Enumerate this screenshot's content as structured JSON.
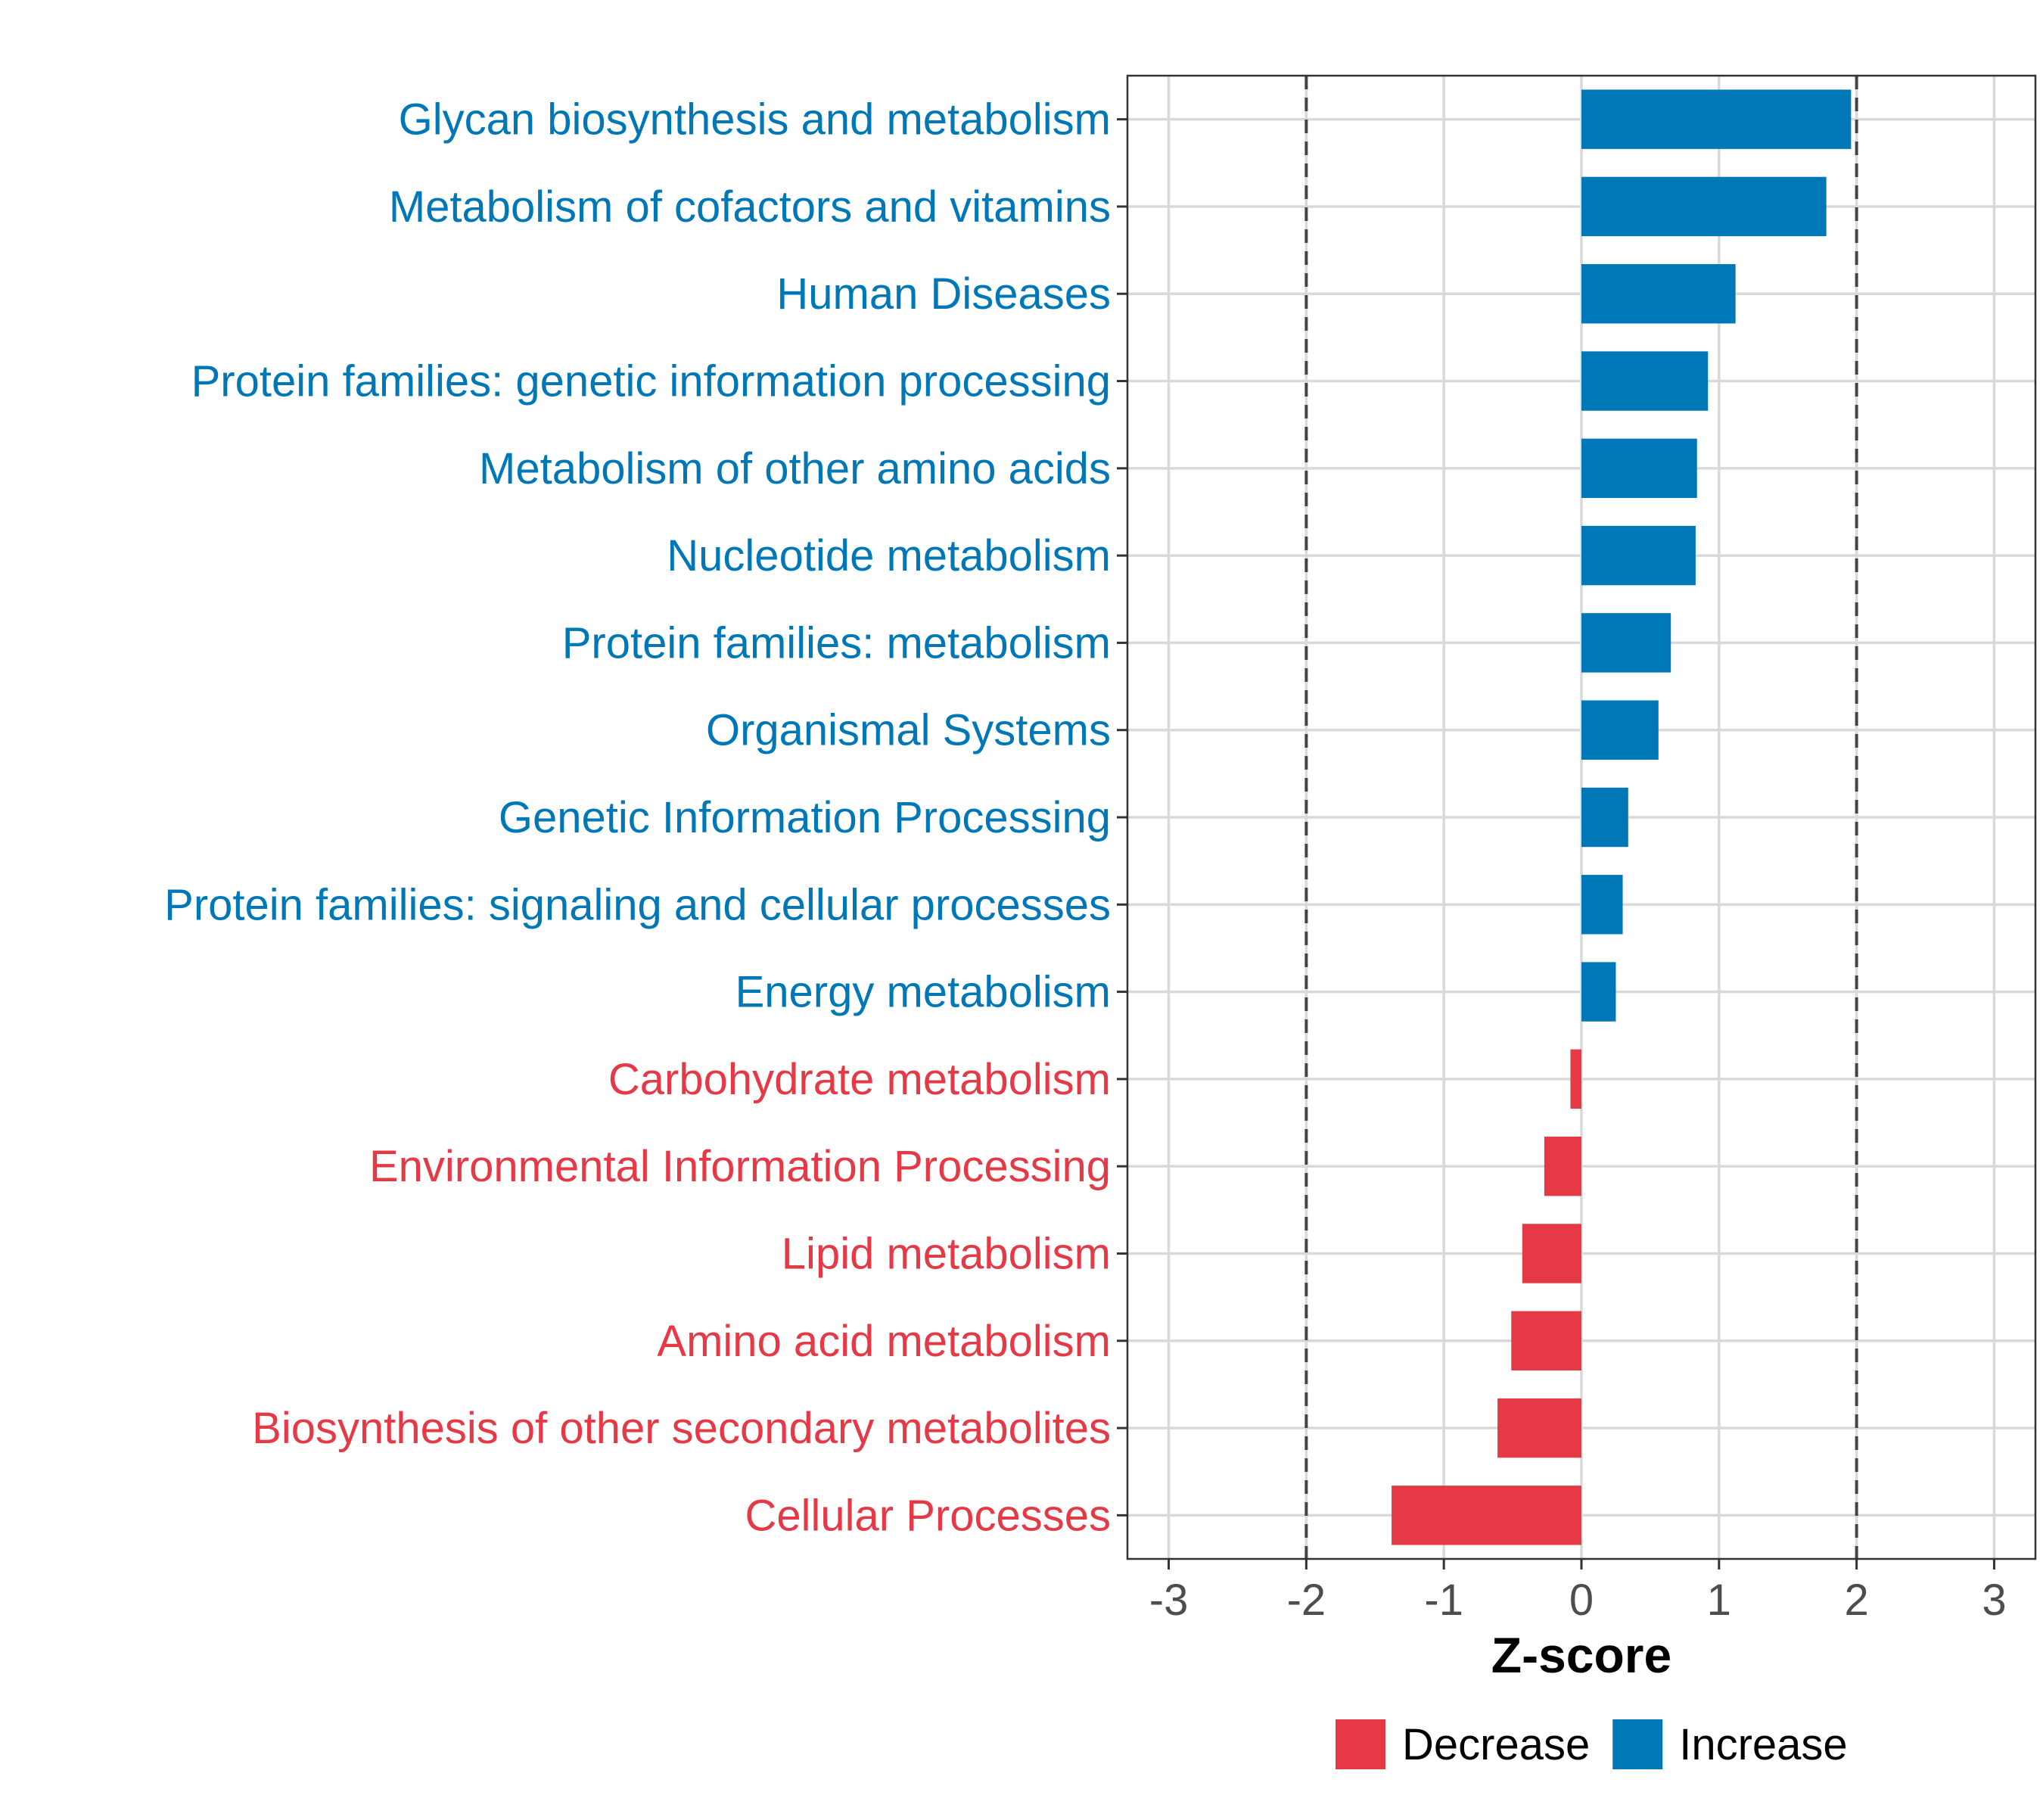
{
  "chart_data": {
    "type": "bar",
    "orientation": "horizontal",
    "categories": [
      "Glycan biosynthesis and metabolism",
      "Metabolism of cofactors and vitamins",
      "Human Diseases",
      "Protein families: genetic information processing",
      "Metabolism of other amino acids",
      "Nucleotide metabolism",
      "Protein families: metabolism",
      "Organismal Systems",
      "Genetic Information Processing",
      "Protein families: signaling and cellular processes",
      "Energy metabolism",
      "Carbohydrate metabolism",
      "Environmental Information Processing",
      "Lipid metabolism",
      "Amino acid metabolism",
      "Biosynthesis of other secondary metabolites",
      "Cellular Processes"
    ],
    "values": [
      1.96,
      1.78,
      1.12,
      0.92,
      0.84,
      0.83,
      0.65,
      0.56,
      0.34,
      0.3,
      0.25,
      -0.08,
      -0.27,
      -0.43,
      -0.51,
      -0.61,
      -1.38
    ],
    "groups": [
      "Increase",
      "Increase",
      "Increase",
      "Increase",
      "Increase",
      "Increase",
      "Increase",
      "Increase",
      "Increase",
      "Increase",
      "Increase",
      "Decrease",
      "Decrease",
      "Decrease",
      "Decrease",
      "Decrease",
      "Decrease"
    ],
    "xlabel": "Z-score",
    "ylabel": "",
    "xlim": [
      -3.3,
      3.3
    ],
    "xticks": [
      -3,
      -2,
      -1,
      0,
      1,
      2,
      3
    ],
    "xtick_labels": [
      "-3",
      "-2",
      "-1",
      "0",
      "1",
      "2",
      "3"
    ],
    "reference_lines": [
      -2,
      2
    ],
    "grid": true,
    "legend": {
      "position": "bottom",
      "entries": [
        {
          "label": "Decrease",
          "color": "#E63946"
        },
        {
          "label": "Increase",
          "color": "#0077B6"
        }
      ]
    },
    "colors": {
      "Increase": "#0077B6",
      "Decrease": "#E63946"
    }
  }
}
